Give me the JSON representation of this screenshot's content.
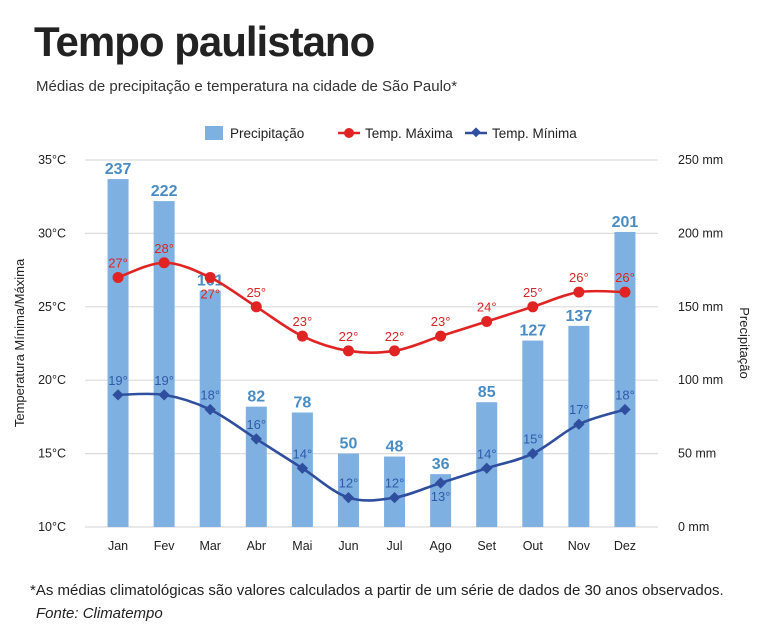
{
  "title": "Tempo paulistano",
  "subtitle": "Médias de precipitação e temperatura na cidade de São Paulo*",
  "footnote": "*As médias climatológicas são valores calculados a partir de um série de dados de 30 anos observados.",
  "source": "Fonte: Climatempo",
  "chart_data": {
    "type": "bar+line",
    "categories": [
      "Jan",
      "Fev",
      "Mar",
      "Abr",
      "Mai",
      "Jun",
      "Jul",
      "Ago",
      "Set",
      "Out",
      "Nov",
      "Dez"
    ],
    "series": [
      {
        "name": "Precipitação",
        "type": "bar",
        "axis": "right",
        "color": "#7eb1e1",
        "label_color": "#4a8cc4",
        "values": [
          237,
          222,
          161,
          82,
          78,
          50,
          48,
          36,
          85,
          127,
          137,
          201
        ]
      },
      {
        "name": "Temp. Máxima",
        "type": "line",
        "axis": "left",
        "color": "#e02424",
        "marker": "circle",
        "values": [
          27,
          28,
          27,
          25,
          23,
          22,
          22,
          23,
          24,
          25,
          26,
          26
        ]
      },
      {
        "name": "Temp. Mínima",
        "type": "line",
        "axis": "left",
        "color": "#2f4f9e",
        "marker": "diamond",
        "values": [
          19,
          19,
          18,
          16,
          14,
          12,
          12,
          13,
          14,
          15,
          17,
          18
        ]
      }
    ],
    "left_axis": {
      "label": "Temperatura Mínima/Máxima",
      "range": [
        10,
        35
      ],
      "ticks": [
        "10°C",
        "15°C",
        "20°C",
        "25°C",
        "30°C",
        "35°C"
      ]
    },
    "right_axis": {
      "label": "Precipitação",
      "range": [
        0,
        250
      ],
      "ticks": [
        "0 mm",
        "50 mm",
        "100 mm",
        "150 mm",
        "200 mm",
        "250 mm"
      ]
    },
    "value_suffix_temp": "°",
    "grid": true,
    "legend_position": "top"
  }
}
